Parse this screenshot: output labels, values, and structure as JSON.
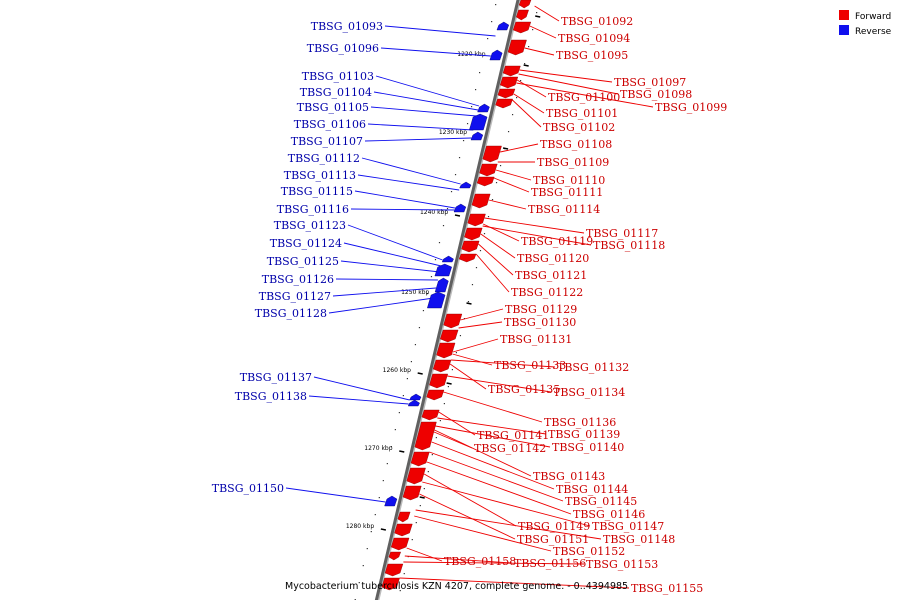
{
  "caption": "Mycobacterium tuberculosis KZN 4207, complete genome. - 0..4394985",
  "legend": [
    {
      "label": "Forward",
      "color": "#ee0000"
    },
    {
      "label": "Reverse",
      "color": "#1010ee"
    }
  ],
  "colors": {
    "forward": "#ee0000",
    "reverse": "#1010ee",
    "forward_label": "#cc0000",
    "reverse_label": "#0000aa"
  },
  "kbp_marks": [
    "1220 kbp",
    "1230 kbp",
    "1240 kbp",
    "1250 kbp",
    "1260 kbp",
    "1270 kbp",
    "1280 kbp"
  ],
  "forward_genes": [
    "TBSG_01092",
    "TBSG_01094",
    "TBSG_01095",
    "TBSG_01097",
    "TBSG_01098",
    "TBSG_01100",
    "TBSG_01099",
    "TBSG_01101",
    "TBSG_01102",
    "TBSG_01108",
    "TBSG_01109",
    "TBSG_01110",
    "TBSG_01111",
    "TBSG_01114",
    "TBSG_01117",
    "TBSG_01119",
    "TBSG_01118",
    "TBSG_01120",
    "TBSG_01121",
    "TBSG_01122",
    "TBSG_01129",
    "TBSG_01130",
    "TBSG_01131",
    "TBSG_01133",
    "TBSG_01132",
    "TBSG_01135",
    "TBSG_01134",
    "TBSG_01136",
    "TBSG_01141",
    "TBSG_01139",
    "TBSG_01142",
    "TBSG_01140",
    "TBSG_01143",
    "TBSG_01144",
    "TBSG_01145",
    "TBSG_01146",
    "TBSG_01149",
    "TBSG_01147",
    "TBSG_01151",
    "TBSG_01148",
    "TBSG_01152",
    "TBSG_01158",
    "TBSG_01156",
    "TBSG_01153",
    "TBSG_01155"
  ],
  "reverse_genes": [
    "TBSG_01093",
    "TBSG_01096",
    "TBSG_01103",
    "TBSG_01104",
    "TBSG_01105",
    "TBSG_01106",
    "TBSG_01107",
    "TBSG_01112",
    "TBSG_01113",
    "TBSG_01115",
    "TBSG_01116",
    "TBSG_01123",
    "TBSG_01124",
    "TBSG_01125",
    "TBSG_01126",
    "TBSG_01127",
    "TBSG_01128",
    "TBSG_01137",
    "TBSG_01138",
    "TBSG_01150"
  ]
}
